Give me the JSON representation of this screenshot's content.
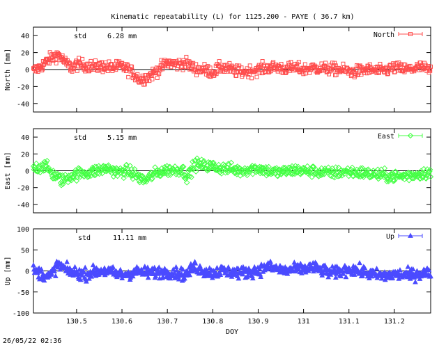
{
  "title": "Kinematic repeatability (L) for 1125.200 - PAYE  ( 36.7 km)",
  "footer": {
    "timestamp": "26/05/22 02:36"
  },
  "chart_data": [
    {
      "type": "scatter",
      "panel": "north",
      "ylabel": "North [mm]",
      "xlabel": "",
      "legend": "North",
      "std_label": "std",
      "std_value": "6.28 mm",
      "color": "#ff4d4d",
      "marker": "square",
      "xlim": [
        130.405,
        131.28
      ],
      "ylim": [
        -50,
        50
      ],
      "yticks": [
        "40",
        "20",
        "0",
        "-20",
        "-40"
      ],
      "ytick_values": [
        40,
        20,
        0,
        -20,
        -40
      ],
      "xtick_labels_shown": false,
      "trend": [
        [
          130.405,
          -2
        ],
        [
          130.42,
          3
        ],
        [
          130.44,
          12
        ],
        [
          130.46,
          18
        ],
        [
          130.475,
          8
        ],
        [
          130.49,
          2
        ],
        [
          130.5,
          6
        ],
        [
          130.52,
          5
        ],
        [
          130.54,
          3
        ],
        [
          130.56,
          4
        ],
        [
          130.58,
          2
        ],
        [
          130.6,
          4
        ],
        [
          130.62,
          -2
        ],
        [
          130.64,
          -12
        ],
        [
          130.66,
          -8
        ],
        [
          130.68,
          0
        ],
        [
          130.7,
          8
        ],
        [
          130.72,
          6
        ],
        [
          130.74,
          8
        ],
        [
          130.76,
          1
        ],
        [
          130.78,
          0
        ],
        [
          130.8,
          -3
        ],
        [
          130.82,
          3
        ],
        [
          130.84,
          0
        ],
        [
          130.86,
          -3
        ],
        [
          130.88,
          -2
        ],
        [
          130.9,
          0
        ],
        [
          130.92,
          2
        ],
        [
          130.94,
          3
        ],
        [
          130.96,
          1
        ],
        [
          130.98,
          2
        ],
        [
          131.0,
          0
        ],
        [
          131.02,
          2
        ],
        [
          131.05,
          1
        ],
        [
          131.08,
          0
        ],
        [
          131.11,
          -3
        ],
        [
          131.14,
          0
        ],
        [
          131.17,
          -2
        ],
        [
          131.2,
          2
        ],
        [
          131.23,
          0
        ],
        [
          131.26,
          3
        ],
        [
          131.28,
          -2
        ]
      ]
    },
    {
      "type": "scatter",
      "panel": "east",
      "ylabel": "East [mm]",
      "xlabel": "",
      "legend": "East",
      "std_label": "std",
      "std_value": "5.15 mm",
      "color": "#44ff44",
      "marker": "diamond",
      "xlim": [
        130.405,
        131.28
      ],
      "ylim": [
        -50,
        50
      ],
      "yticks": [
        "40",
        "20",
        "0",
        "-20",
        "-40"
      ],
      "ytick_values": [
        40,
        20,
        0,
        -20,
        -40
      ],
      "xtick_labels_shown": false,
      "trend": [
        [
          130.405,
          3
        ],
        [
          130.43,
          6
        ],
        [
          130.45,
          -5
        ],
        [
          130.47,
          -12
        ],
        [
          130.49,
          -5
        ],
        [
          130.51,
          -3
        ],
        [
          130.53,
          -2
        ],
        [
          130.55,
          1
        ],
        [
          130.57,
          3
        ],
        [
          130.59,
          -2
        ],
        [
          130.61,
          0
        ],
        [
          130.63,
          -5
        ],
        [
          130.65,
          -12
        ],
        [
          130.67,
          -4
        ],
        [
          130.69,
          0
        ],
        [
          130.71,
          1
        ],
        [
          130.73,
          2
        ],
        [
          130.745,
          -7
        ],
        [
          130.76,
          8
        ],
        [
          130.78,
          6
        ],
        [
          130.8,
          5
        ],
        [
          130.82,
          3
        ],
        [
          130.84,
          2
        ],
        [
          130.86,
          0
        ],
        [
          130.88,
          2
        ],
        [
          130.9,
          3
        ],
        [
          130.92,
          0
        ],
        [
          130.94,
          -2
        ],
        [
          130.96,
          -1
        ],
        [
          130.98,
          1
        ],
        [
          131.0,
          0
        ],
        [
          131.03,
          -1
        ],
        [
          131.06,
          -3
        ],
        [
          131.09,
          -1
        ],
        [
          131.12,
          -2
        ],
        [
          131.15,
          -4
        ],
        [
          131.18,
          -6
        ],
        [
          131.21,
          -7
        ],
        [
          131.24,
          -5
        ],
        [
          131.26,
          -3
        ],
        [
          131.28,
          -2
        ]
      ]
    },
    {
      "type": "scatter",
      "panel": "up",
      "ylabel": "Up [mm]",
      "xlabel": "DOY",
      "legend": "Up",
      "std_label": "std",
      "std_value": "11.11 mm",
      "color": "#4b4bff",
      "marker": "triangle",
      "xlim": [
        130.405,
        131.28
      ],
      "ylim": [
        -100,
        100
      ],
      "yticks": [
        "100",
        "50",
        "0",
        "-50",
        "-100"
      ],
      "ytick_values": [
        100,
        50,
        0,
        -50,
        -100
      ],
      "xtick_labels_shown": true,
      "xticks": [
        "130.5",
        "130.6",
        "130.7",
        "130.8",
        "130.9",
        "131",
        "131.1",
        "131.2"
      ],
      "xtick_values": [
        130.5,
        130.6,
        130.7,
        130.8,
        130.9,
        131.0,
        131.1,
        131.2
      ],
      "trend": [
        [
          130.405,
          0
        ],
        [
          130.42,
          -5
        ],
        [
          130.44,
          -15
        ],
        [
          130.46,
          15
        ],
        [
          130.48,
          0
        ],
        [
          130.5,
          -5
        ],
        [
          130.52,
          -8
        ],
        [
          130.54,
          -2
        ],
        [
          130.56,
          0
        ],
        [
          130.58,
          -5
        ],
        [
          130.6,
          -10
        ],
        [
          130.62,
          -5
        ],
        [
          130.64,
          -2
        ],
        [
          130.66,
          -5
        ],
        [
          130.68,
          -3
        ],
        [
          130.7,
          -3
        ],
        [
          130.72,
          -5
        ],
        [
          130.74,
          -10
        ],
        [
          130.76,
          10
        ],
        [
          130.78,
          0
        ],
        [
          130.8,
          -5
        ],
        [
          130.82,
          0
        ],
        [
          130.84,
          -2
        ],
        [
          130.86,
          -5
        ],
        [
          130.88,
          -2
        ],
        [
          130.9,
          0
        ],
        [
          130.92,
          10
        ],
        [
          130.94,
          5
        ],
        [
          130.96,
          0
        ],
        [
          130.98,
          3
        ],
        [
          131.0,
          5
        ],
        [
          131.02,
          8
        ],
        [
          131.04,
          2
        ],
        [
          131.06,
          -5
        ],
        [
          131.08,
          -2
        ],
        [
          131.1,
          5
        ],
        [
          131.12,
          0
        ],
        [
          131.14,
          -5
        ],
        [
          131.16,
          -10
        ],
        [
          131.18,
          -12
        ],
        [
          131.2,
          -8
        ],
        [
          131.23,
          -10
        ],
        [
          131.26,
          -6
        ],
        [
          131.28,
          -5
        ]
      ]
    }
  ]
}
